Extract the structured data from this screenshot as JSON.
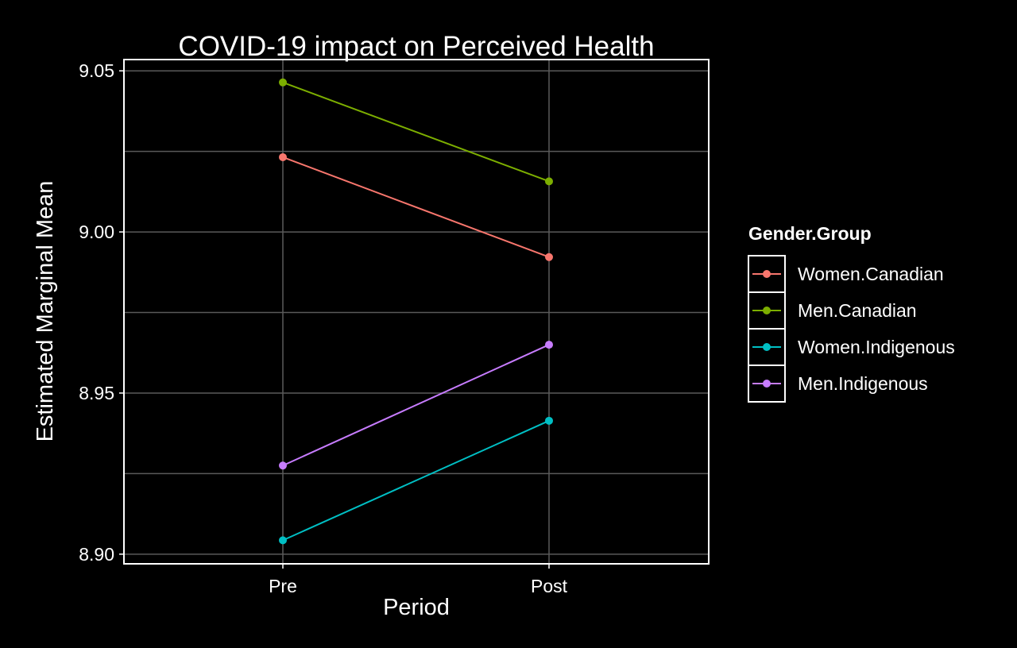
{
  "chart_data": {
    "type": "line",
    "title": "COVID-19 impact on Perceived Health",
    "xlabel": "Period",
    "ylabel": "Estimated Marginal Mean",
    "categories": [
      "Pre",
      "Post"
    ],
    "ylim": [
      8.897,
      9.0535
    ],
    "yticks": [
      "8.90",
      "8.95",
      "9.00",
      "9.05"
    ],
    "grid": true,
    "legend": {
      "title": "Gender.Group",
      "position": "right"
    },
    "series": [
      {
        "name": "Women.Canadian",
        "color": "#F8766D",
        "values": [
          9.0232,
          8.9922
        ]
      },
      {
        "name": "Men.Canadian",
        "color": "#7CAE00",
        "values": [
          9.0464,
          9.0157
        ]
      },
      {
        "name": "Women.Indigenous",
        "color": "#00BFC4",
        "values": [
          8.9043,
          8.9414
        ]
      },
      {
        "name": "Men.Indigenous",
        "color": "#C77CFF",
        "values": [
          8.9275,
          8.965
        ]
      }
    ]
  }
}
